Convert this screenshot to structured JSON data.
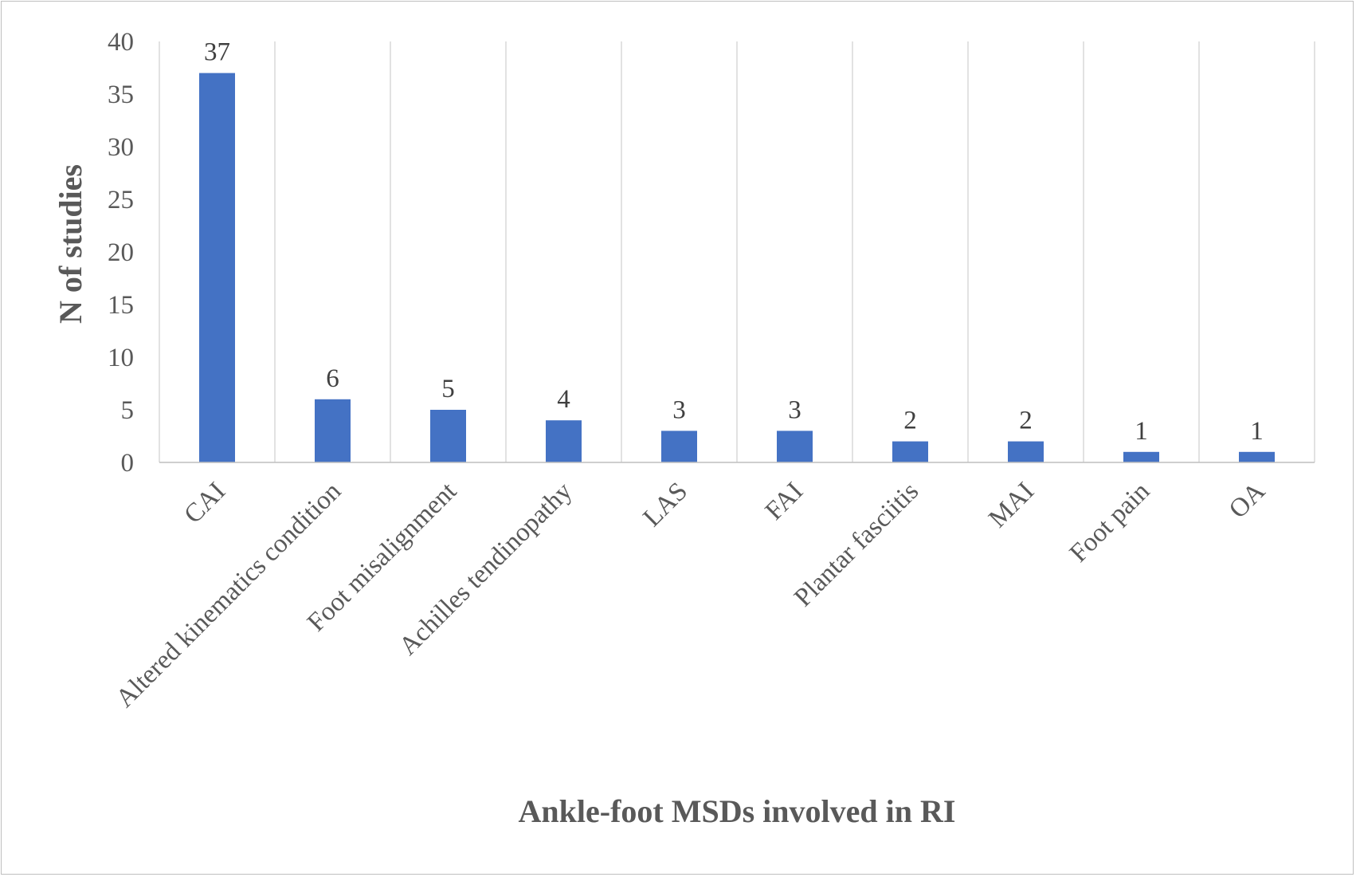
{
  "chart_data": {
    "type": "bar",
    "title": "",
    "xlabel": "Ankle-foot MSDs involved in RI",
    "ylabel": "N of studies",
    "ylim": [
      0,
      40
    ],
    "yticks": [
      0,
      5,
      10,
      15,
      20,
      25,
      30,
      35,
      40
    ],
    "grid": "vertical",
    "categories": [
      "CAI",
      "Altered kinematics condition",
      "Foot misalignment",
      "Achilles tendinopathy",
      "LAS",
      "FAI",
      "Plantar fasciitis",
      "MAI",
      "Foot pain",
      "OA"
    ],
    "values": [
      37,
      6,
      5,
      4,
      3,
      3,
      2,
      2,
      1,
      1
    ],
    "bar_color": "#4472c4",
    "data_labels": true
  }
}
